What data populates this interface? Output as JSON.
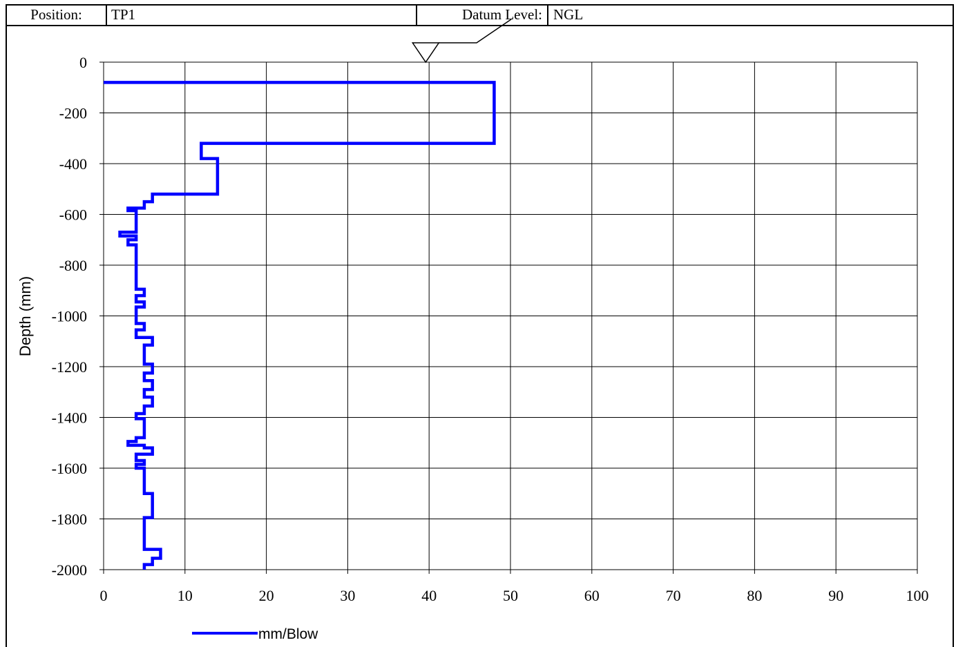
{
  "header": {
    "position_label": "Position:",
    "position_value": "TP1",
    "datum_label": "Datum Level:",
    "datum_value": "NGL"
  },
  "chart_data": {
    "type": "line",
    "title": "",
    "xlabel": "",
    "ylabel": "Depth (mm)",
    "xlim": [
      0,
      100
    ],
    "ylim": [
      -2000,
      0
    ],
    "x_ticks": [
      0,
      10,
      20,
      30,
      40,
      50,
      60,
      70,
      80,
      90,
      100
    ],
    "y_ticks": [
      0,
      -200,
      -400,
      -600,
      -800,
      -1000,
      -1200,
      -1400,
      -1600,
      -1800,
      -2000
    ],
    "grid": true,
    "legend_position": "bottom-left",
    "color": "#0000ff",
    "series": [
      {
        "name": "mm/Blow",
        "step_points": [
          [
            0,
            -80
          ],
          [
            48,
            -80
          ],
          [
            48,
            -320
          ],
          [
            12,
            -320
          ],
          [
            12,
            -380
          ],
          [
            14,
            -380
          ],
          [
            14,
            -520
          ],
          [
            6,
            -520
          ],
          [
            6,
            -550
          ],
          [
            5,
            -550
          ],
          [
            5,
            -575
          ],
          [
            3,
            -575
          ],
          [
            3,
            -585
          ],
          [
            4,
            -585
          ],
          [
            4,
            -670
          ],
          [
            2,
            -670
          ],
          [
            2,
            -685
          ],
          [
            4,
            -685
          ],
          [
            4,
            -700
          ],
          [
            3,
            -700
          ],
          [
            3,
            -720
          ],
          [
            4,
            -720
          ],
          [
            4,
            -895
          ],
          [
            5,
            -895
          ],
          [
            5,
            -920
          ],
          [
            4,
            -920
          ],
          [
            4,
            -945
          ],
          [
            5,
            -945
          ],
          [
            5,
            -965
          ],
          [
            4,
            -965
          ],
          [
            4,
            -1030
          ],
          [
            5,
            -1030
          ],
          [
            5,
            -1055
          ],
          [
            4,
            -1055
          ],
          [
            4,
            -1085
          ],
          [
            6,
            -1085
          ],
          [
            6,
            -1115
          ],
          [
            5,
            -1115
          ],
          [
            5,
            -1190
          ],
          [
            6,
            -1190
          ],
          [
            6,
            -1225
          ],
          [
            5,
            -1225
          ],
          [
            5,
            -1255
          ],
          [
            6,
            -1255
          ],
          [
            6,
            -1290
          ],
          [
            5,
            -1290
          ],
          [
            5,
            -1320
          ],
          [
            6,
            -1320
          ],
          [
            6,
            -1355
          ],
          [
            5,
            -1355
          ],
          [
            5,
            -1385
          ],
          [
            4,
            -1385
          ],
          [
            4,
            -1405
          ],
          [
            5,
            -1405
          ],
          [
            5,
            -1480
          ],
          [
            4,
            -1480
          ],
          [
            4,
            -1495
          ],
          [
            3,
            -1495
          ],
          [
            3,
            -1510
          ],
          [
            5,
            -1510
          ],
          [
            5,
            -1520
          ],
          [
            6,
            -1520
          ],
          [
            6,
            -1545
          ],
          [
            4,
            -1545
          ],
          [
            4,
            -1570
          ],
          [
            5,
            -1570
          ],
          [
            5,
            -1585
          ],
          [
            4,
            -1585
          ],
          [
            4,
            -1600
          ],
          [
            5,
            -1600
          ],
          [
            5,
            -1700
          ],
          [
            6,
            -1700
          ],
          [
            6,
            -1795
          ],
          [
            5,
            -1795
          ],
          [
            5,
            -1920
          ],
          [
            7,
            -1920
          ],
          [
            7,
            -1955
          ],
          [
            6,
            -1955
          ],
          [
            6,
            -1980
          ],
          [
            5,
            -1980
          ],
          [
            5,
            -2000
          ]
        ]
      }
    ],
    "datum_marker_x": 39.5
  }
}
